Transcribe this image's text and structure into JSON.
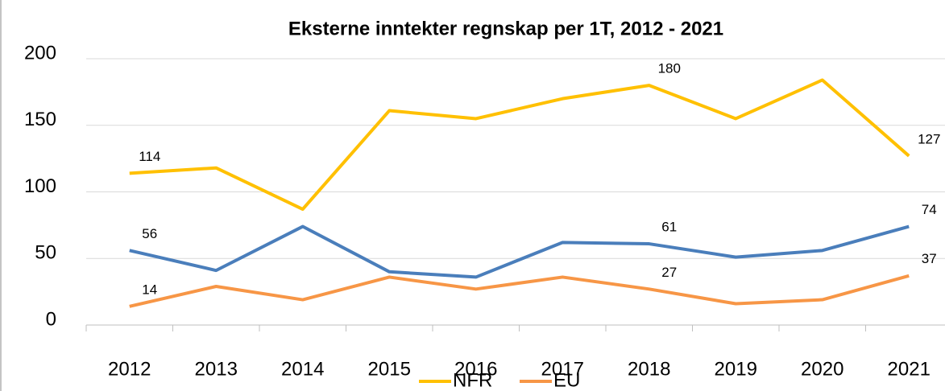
{
  "chart_data": {
    "type": "line",
    "title": "Eksterne inntekter regnskap per 1T, 2012 - 2021",
    "categories": [
      "2012",
      "2013",
      "2014",
      "2015",
      "2016",
      "2017",
      "2018",
      "2019",
      "2020",
      "2021"
    ],
    "series": [
      {
        "name": "NFR",
        "color": "#ffc000",
        "values": [
          114,
          118,
          87,
          161,
          155,
          170,
          180,
          155,
          184,
          127
        ],
        "labeled": [
          0,
          6,
          9
        ]
      },
      {
        "color": "#4a7ebb",
        "values": [
          56,
          41,
          74,
          40,
          36,
          62,
          61,
          51,
          56,
          74
        ],
        "labeled": [
          0,
          6,
          9
        ]
      },
      {
        "name": "EU",
        "color": "#f79646",
        "values": [
          14,
          29,
          19,
          36,
          27,
          36,
          27,
          16,
          19,
          37
        ],
        "labeled": [
          0,
          6,
          9
        ]
      }
    ],
    "ylim": [
      0,
      200
    ],
    "yticks": [
      0,
      50,
      100,
      150,
      200
    ],
    "grid": true,
    "legend": "bottom"
  }
}
